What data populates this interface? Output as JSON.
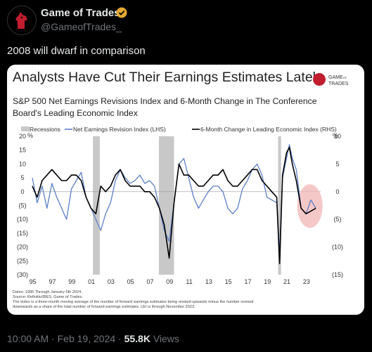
{
  "tweet": {
    "author_name": "Game of Trades",
    "handle": "@GameofTrades_",
    "text": "2008 will dwarf in comparison",
    "time": "10:00 AM",
    "date": "Feb 19, 2024",
    "views_count": "55.8K",
    "views_label": "Views",
    "separator": "·"
  },
  "card": {
    "title": "Analysts Have Cut Their Earnings Estimates Lately",
    "logo_text": "GAME OF TRADES",
    "subtitle_line1": "S&P 500 Net Earnings Revisions Index and 6-Month Change in The Conference",
    "subtitle_line2": "Board's Leading Economic Index",
    "footnotes": [
      "Dates: 1995 Through January 5th 2024.",
      "Source: Refinitiv/IBES, Game of Trades.",
      "The index is a three-month moving average of the number of forward earnings estimates being revised upwards minus the number revised",
      "downwards as a share of the total number of forward earnings estimates. LEI is through November 2023."
    ]
  },
  "colors": {
    "background": "#000000",
    "card": "#ffffff",
    "revisions_series": "#5b7fc7",
    "lei_series": "#000000",
    "recession_band": "#c8c8c8",
    "highlight_circle": "#f2b6b6",
    "verified": "#e2a82f"
  },
  "chart_data": {
    "type": "line",
    "legend": [
      "Recessions",
      "Net Earnings Revision Index (LHS)",
      "6-Month Change in Leading Economic Index (RHS)"
    ],
    "legend_placement": "top",
    "ylabel_left": "%",
    "ylabel_right": "%",
    "ylim_left": [
      -30,
      20
    ],
    "ylim_right": [
      -15,
      10
    ],
    "left_ticks": [
      "20",
      "15",
      "10",
      "5",
      "0",
      "(5)",
      "(10)",
      "(15)",
      "(20)",
      "(25)",
      "(30)"
    ],
    "right_ticks": [
      "10",
      "5",
      "0",
      "(5)",
      "(10)",
      "(15)"
    ],
    "x_ticks": [
      "95",
      "97",
      "99",
      "01",
      "03",
      "05",
      "07",
      "09",
      "11",
      "13",
      "15",
      "17",
      "19",
      "21",
      "23"
    ],
    "recessions": [
      [
        2001.2,
        2001.9
      ],
      [
        2007.95,
        2009.5
      ],
      [
        2020.15,
        2020.45
      ]
    ],
    "series": [
      {
        "name": "Net Earnings Revision Index (LHS)",
        "axis": "left",
        "x": [
          1995.0,
          1995.5,
          1996.0,
          1996.5,
          1997.0,
          1997.5,
          1998.0,
          1998.5,
          1999.0,
          1999.5,
          2000.0,
          2000.5,
          2001.0,
          2001.5,
          2002.0,
          2002.5,
          2003.0,
          2003.5,
          2004.0,
          2004.5,
          2005.0,
          2005.5,
          2006.0,
          2006.5,
          2007.0,
          2007.5,
          2008.0,
          2008.5,
          2009.0,
          2009.5,
          2010.0,
          2010.5,
          2011.0,
          2011.5,
          2012.0,
          2012.5,
          2013.0,
          2013.5,
          2014.0,
          2014.5,
          2015.0,
          2015.5,
          2016.0,
          2016.5,
          2017.0,
          2017.5,
          2018.0,
          2018.5,
          2019.0,
          2019.5,
          2020.0,
          2020.3,
          2020.6,
          2021.0,
          2021.3,
          2021.6,
          2022.0,
          2022.5,
          2023.0,
          2023.5,
          2024.0
        ],
        "y": [
          5,
          -4,
          2,
          -6,
          3,
          -2,
          -6,
          -10,
          1,
          4,
          7,
          -2,
          -6,
          -10,
          -14,
          -8,
          -4,
          4,
          8,
          5,
          3,
          4,
          6,
          3,
          4,
          2,
          -6,
          -14,
          -18,
          -4,
          10,
          12,
          5,
          -2,
          -6,
          -3,
          0,
          2,
          2,
          0,
          -6,
          -8,
          -6,
          1,
          4,
          8,
          10,
          6,
          -2,
          -3,
          -4,
          -22,
          5,
          12,
          17,
          12,
          8,
          -6,
          -8,
          -3,
          -6
        ]
      },
      {
        "name": "6-Month Change in Leading Economic Index (RHS)",
        "axis": "right",
        "x": [
          1995.0,
          1995.5,
          1996.0,
          1996.5,
          1997.0,
          1997.5,
          1998.0,
          1998.5,
          1999.0,
          1999.5,
          2000.0,
          2000.5,
          2001.0,
          2001.5,
          2002.0,
          2002.5,
          2003.0,
          2003.5,
          2004.0,
          2004.5,
          2005.0,
          2005.5,
          2006.0,
          2006.5,
          2007.0,
          2007.5,
          2008.0,
          2008.5,
          2009.0,
          2009.5,
          2010.0,
          2010.5,
          2011.0,
          2011.5,
          2012.0,
          2012.5,
          2013.0,
          2013.5,
          2014.0,
          2014.5,
          2015.0,
          2015.5,
          2016.0,
          2016.5,
          2017.0,
          2017.5,
          2018.0,
          2018.5,
          2019.0,
          2019.5,
          2020.0,
          2020.3,
          2020.6,
          2021.0,
          2021.3,
          2021.6,
          2022.0,
          2022.5,
          2023.0,
          2023.5,
          2024.0
        ],
        "y": [
          1,
          -1,
          2,
          3,
          4,
          3,
          2,
          2,
          3,
          3,
          2,
          -1,
          -3,
          -4,
          1,
          0,
          1,
          3,
          4,
          2,
          1,
          1,
          1,
          0,
          0,
          -1,
          -3,
          -6,
          -12,
          -2,
          5,
          3,
          3,
          2,
          1,
          1,
          2,
          3,
          3,
          4,
          2,
          1,
          1,
          2,
          3,
          4,
          4,
          2,
          1,
          0,
          -1,
          -13,
          3,
          7,
          8,
          5,
          2,
          -3,
          -4,
          -3.5,
          -3
        ]
      }
    ]
  }
}
